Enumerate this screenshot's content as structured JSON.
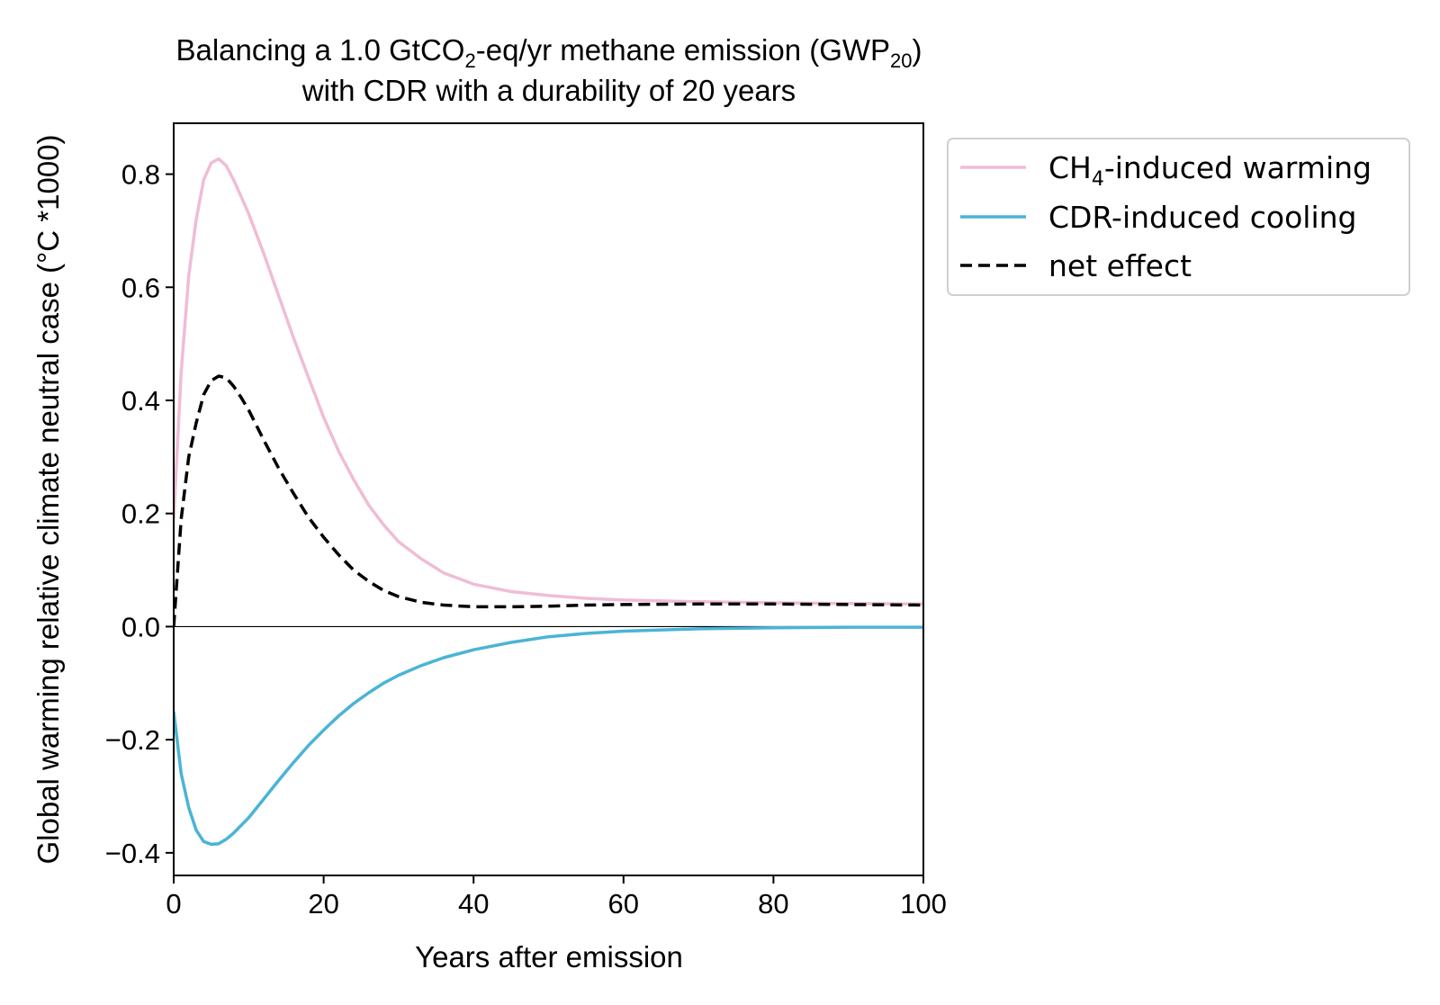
{
  "chart_data": {
    "type": "line",
    "title": {
      "line1": {
        "pre": "Balancing a 1.0 GtCO",
        "sub1": "2",
        "mid": "-eq/yr methane emission (GWP",
        "sub2": "20",
        "post": ")"
      },
      "line2": "with CDR with a durability of 20 years"
    },
    "xlabel": "Years after emission",
    "ylabel": "Global warming relative climate neutral case (°C *1000)",
    "xlim": [
      0,
      100
    ],
    "ylim": [
      -0.44,
      0.89
    ],
    "xticks": [
      0,
      20,
      40,
      60,
      80,
      100
    ],
    "xtick_labels": [
      "0",
      "20",
      "40",
      "60",
      "80",
      "100"
    ],
    "yticks": [
      -0.4,
      -0.2,
      0.0,
      0.2,
      0.4,
      0.6,
      0.8
    ],
    "ytick_labels": [
      "−0.4",
      "−0.2",
      "0.0",
      "0.2",
      "0.4",
      "0.6",
      "0.8"
    ],
    "grid": false,
    "zero_line": true,
    "legend_position": "outside-upper-right",
    "series": [
      {
        "key": "ch4",
        "name_parts": {
          "pre": "CH",
          "sub": "4",
          "post": "-induced warming"
        },
        "color": "#f0bcd6",
        "style": "solid",
        "x": [
          0,
          1,
          2,
          3,
          4,
          5,
          6,
          7,
          8,
          9,
          10,
          12,
          14,
          16,
          18,
          20,
          22,
          24,
          26,
          28,
          30,
          33,
          36,
          40,
          45,
          50,
          55,
          60,
          70,
          80,
          90,
          100
        ],
        "y": [
          0.19,
          0.45,
          0.62,
          0.72,
          0.79,
          0.82,
          0.827,
          0.815,
          0.79,
          0.76,
          0.73,
          0.66,
          0.585,
          0.51,
          0.44,
          0.37,
          0.31,
          0.26,
          0.215,
          0.18,
          0.15,
          0.12,
          0.095,
          0.075,
          0.062,
          0.055,
          0.05,
          0.047,
          0.044,
          0.042,
          0.041,
          0.04
        ]
      },
      {
        "key": "cdr",
        "name": "CDR-induced cooling",
        "color": "#4ab4d6",
        "style": "solid",
        "x": [
          0,
          1,
          2,
          3,
          4,
          5,
          6,
          7,
          8,
          10,
          12,
          14,
          16,
          18,
          20,
          22,
          24,
          26,
          28,
          30,
          33,
          36,
          40,
          45,
          50,
          55,
          60,
          70,
          80,
          90,
          100
        ],
        "y": [
          -0.15,
          -0.26,
          -0.32,
          -0.36,
          -0.38,
          -0.385,
          -0.384,
          -0.376,
          -0.365,
          -0.338,
          -0.305,
          -0.272,
          -0.24,
          -0.21,
          -0.183,
          -0.158,
          -0.136,
          -0.117,
          -0.1,
          -0.086,
          -0.069,
          -0.055,
          -0.041,
          -0.028,
          -0.018,
          -0.012,
          -0.008,
          -0.004,
          -0.002,
          -0.001,
          -0.001
        ]
      },
      {
        "key": "net",
        "name": "net effect",
        "color": "#000000",
        "style": "dashed",
        "x": [
          0,
          1,
          2,
          3,
          4,
          5,
          6,
          7,
          8,
          9,
          10,
          12,
          14,
          16,
          18,
          20,
          22,
          24,
          26,
          28,
          30,
          33,
          36,
          40,
          45,
          50,
          55,
          60,
          70,
          80,
          90,
          100
        ],
        "y": [
          0.0,
          0.19,
          0.3,
          0.36,
          0.41,
          0.435,
          0.443,
          0.44,
          0.425,
          0.405,
          0.383,
          0.33,
          0.28,
          0.235,
          0.193,
          0.158,
          0.127,
          0.1,
          0.08,
          0.064,
          0.053,
          0.043,
          0.038,
          0.035,
          0.035,
          0.036,
          0.038,
          0.039,
          0.04,
          0.04,
          0.039,
          0.038
        ]
      }
    ]
  }
}
